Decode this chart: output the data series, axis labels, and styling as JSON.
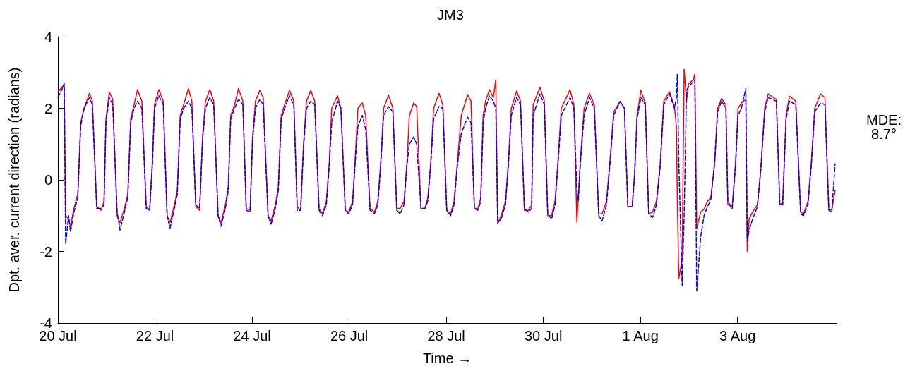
{
  "chart_data": {
    "type": "line",
    "title": "JM3",
    "xlabel": "Time →",
    "ylabel": "Dpt. aver. current direction (radians)",
    "annotations": [
      "MDE:\n8.7°"
    ],
    "x": [
      "--07-20T00:00",
      "--07-20T02:10",
      "--07-20T03:07",
      "--07-20T03:50",
      "--07-20T05:17",
      "--07-20T06:14",
      "--07-20T07:55",
      "--07-20T09:50",
      "--07-20T11:17",
      "--07-20T12:58",
      "--07-20T15:36",
      "--07-20T17:02",
      "--07-20T19:12",
      "--07-20T21:22",
      "--07-20T22:48",
      "--07-20T23:46",
      "--07-21T01:26",
      "--07-21T03:07",
      "--07-21T05:17",
      "--07-21T06:43",
      "--07-21T08:53",
      "--07-21T10:34",
      "--07-21T12:00",
      "--07-21T13:41",
      "--07-21T15:22",
      "--07-21T17:31",
      "--07-21T19:41",
      "--07-21T21:22",
      "--07-21T22:48",
      "--07-21T23:46",
      "--07-22T01:55",
      "--07-22T04:05",
      "--07-22T06:00",
      "--07-22T07:26",
      "--07-22T09:36",
      "--07-22T11:02",
      "--07-22T12:29",
      "--07-22T14:10",
      "--07-22T16:34",
      "--07-22T18:14",
      "--07-22T20:10",
      "--07-22T22:05",
      "--07-22T23:31",
      "--07-23T00:58",
      "--07-23T03:07",
      "--07-23T05:02",
      "--07-23T07:12",
      "--07-23T08:38",
      "--07-23T10:48",
      "--07-23T12:14",
      "--07-23T13:26",
      "--07-23T15:22",
      "--07-23T17:17",
      "--07-23T19:26",
      "--07-23T21:07",
      "--07-23T23:02",
      "--07-24T00:14",
      "--07-24T01:41",
      "--07-24T03:50",
      "--07-24T05:31",
      "--07-24T07:55",
      "--07-24T09:22",
      "--07-24T11:31",
      "--07-24T12:58",
      "--07-24T14:24",
      "--07-24T16:05",
      "--07-24T18:29",
      "--07-24T20:38",
      "--07-24T22:19",
      "--07-25T00:00",
      "--07-25T01:26",
      "--07-25T02:53",
      "--07-25T05:02",
      "--07-25T06:58",
      "--07-25T09:07",
      "--07-25T10:48",
      "--07-25T12:43",
      "--07-25T14:10",
      "--07-25T15:22",
      "--07-25T18:14",
      "--07-25T19:55",
      "--07-25T22:05",
      "--07-25T23:46",
      "--07-26T01:41",
      "--07-26T02:53",
      "--07-26T04:19",
      "--07-26T06:29",
      "--07-26T08:10",
      "--07-26T10:19",
      "--07-26T12:29",
      "--07-26T14:10",
      "--07-26T15:36",
      "--07-26T17:02",
      "--07-26T19:26",
      "--07-26T21:36",
      "--07-26T23:31",
      "--07-27T01:12",
      "--07-27T03:07",
      "--07-27T04:34",
      "--07-27T05:46",
      "--07-27T07:55",
      "--07-27T09:22",
      "--07-27T11:31",
      "--07-27T13:26",
      "--07-27T14:53",
      "--07-27T16:19",
      "--07-27T17:46",
      "--07-27T20:24",
      "--07-27T22:19",
      "--07-28T00:14",
      "--07-28T02:10",
      "--07-28T03:50",
      "--07-28T05:31",
      "--07-28T07:26",
      "--07-28T10:34",
      "--07-28T12:14",
      "--07-28T13:55",
      "--07-28T15:36",
      "--07-28T17:02",
      "--07-28T18:14",
      "--07-28T19:26",
      "--07-28T21:22",
      "--07-28T23:17",
      "--07-29T00:29",
      "--07-29T01:26",
      "--07-29T03:07",
      "--07-29T05:17",
      "--07-29T06:43",
      "--07-29T08:10",
      "--07-29T10:48",
      "--07-29T12:43",
      "--07-29T14:38",
      "--07-29T16:34",
      "--07-29T18:14",
      "--07-29T18:58",
      "--07-29T22:19",
      "--07-30T00:29",
      "--07-30T02:10",
      "--07-30T04:05",
      "--07-30T05:46",
      "--07-30T07:12",
      "--07-30T08:53",
      "--07-30T13:12",
      "--07-30T15:07",
      "--07-30T16:34",
      "--07-30T17:17",
      "--07-30T18:14",
      "--07-30T20:10",
      "--07-30T22:48",
      "--07-31T01:12",
      "--07-31T03:22",
      "--07-31T05:02",
      "--07-31T07:12",
      "--07-31T08:53",
      "--07-31T10:48",
      "--07-31T13:55",
      "--07-31T16:05",
      "--07-31T17:46",
      "--07-31T19:55",
      "--07-31T21:07",
      "--07-31T22:19",
      "--08-01T00:14",
      "--08-01T02:24",
      "--08-01T04:05",
      "--08-01T06:00",
      "--08-01T07:55",
      "--08-01T09:50",
      "--08-01T11:31",
      "--08-01T14:24",
      "--08-01T16:48",
      "--08-01T17:46",
      "--08-01T18:14",
      "--08-01T18:58",
      "--08-01T20:38",
      "--08-01T21:36",
      "--08-01T22:48",
      "--08-01T23:46",
      "--08-02T02:10",
      "--08-02T02:53",
      "--08-02T03:50",
      "--08-02T05:46",
      "--08-02T07:26",
      "--08-02T09:07",
      "--08-02T10:48",
      "--08-02T12:43",
      "--08-02T14:10",
      "--08-02T16:05",
      "--08-02T18:14",
      "--08-02T19:12",
      "--08-02T21:22",
      "--08-02T23:02",
      "--08-03T00:14",
      "--08-03T01:55",
      "--08-03T04:05",
      "--08-03T04:48",
      "--08-03T05:46",
      "--08-03T07:26",
      "--08-03T09:50",
      "--08-03T11:31",
      "--08-03T13:26",
      "--08-03T15:07",
      "--08-03T19:12",
      "--08-03T20:53",
      "--08-03T22:19",
      "--08-04T00:00",
      "--08-04T01:41",
      "--08-04T04:48",
      "--08-04T07:12",
      "--08-04T08:38",
      "--08-04T10:48",
      "--08-04T12:29",
      "--08-04T14:10",
      "--08-04T17:02",
      "--08-04T19:12",
      "--08-04T21:07",
      "--08-04T22:34",
      "--08-05T00:14"
    ],
    "series": [
      {
        "color": "#ff0000",
        "line_style": "solid",
        "values": [
          2.45,
          2.6,
          2.65,
          -1.0,
          -1.1,
          -1.3,
          -0.8,
          -0.4,
          1.6,
          2.0,
          2.42,
          2.2,
          -0.75,
          -0.85,
          -0.6,
          1.7,
          2.45,
          2.25,
          -1.0,
          -1.2,
          -0.8,
          -0.4,
          1.7,
          2.1,
          2.52,
          2.2,
          -0.75,
          -0.85,
          0.6,
          2.1,
          2.52,
          2.2,
          -1.0,
          -1.2,
          -0.7,
          -0.3,
          1.8,
          2.1,
          2.55,
          2.2,
          -0.75,
          -0.85,
          1.2,
          2.2,
          2.52,
          2.2,
          -1.0,
          -1.2,
          -0.7,
          -0.2,
          1.8,
          2.1,
          2.55,
          2.2,
          -0.8,
          -0.85,
          1.2,
          2.2,
          2.5,
          2.3,
          -1.0,
          -1.15,
          -0.7,
          -0.2,
          1.8,
          2.1,
          2.5,
          2.2,
          -0.75,
          -0.85,
          1.0,
          2.2,
          2.5,
          2.2,
          -0.8,
          -0.95,
          -0.6,
          0.5,
          2.0,
          2.35,
          2.0,
          -0.85,
          -0.9,
          -0.6,
          0.5,
          2.0,
          2.15,
          1.8,
          -0.8,
          -0.9,
          -0.6,
          0.5,
          2.0,
          2.37,
          2.0,
          -0.8,
          -0.8,
          -0.6,
          0.5,
          1.8,
          2.15,
          2.05,
          -0.8,
          -0.8,
          -0.5,
          0.5,
          2.0,
          2.42,
          2.1,
          -0.85,
          -0.95,
          -0.6,
          0.5,
          1.8,
          2.38,
          2.2,
          -0.8,
          -0.8,
          -0.5,
          1.8,
          2.2,
          2.52,
          2.3,
          2.8,
          -1.22,
          -1.0,
          -0.6,
          0.5,
          2.0,
          2.48,
          2.2,
          -0.85,
          -0.85,
          -0.7,
          2.1,
          2.58,
          2.2,
          -1.0,
          -1.0,
          -0.6,
          0.5,
          2.0,
          2.52,
          2.1,
          -1.18,
          -0.5,
          0.5,
          2.0,
          2.42,
          2.1,
          -0.95,
          -0.95,
          -0.6,
          0.5,
          1.9,
          2.19,
          2.0,
          -0.75,
          -0.75,
          0.2,
          1.8,
          2.5,
          2.15,
          -0.95,
          -0.9,
          -0.6,
          0.5,
          2.2,
          2.46,
          2.05,
          1.5,
          -0.5,
          -2.76,
          -2.2,
          3.09,
          2.2,
          2.68,
          2.8,
          2.95,
          -1.35,
          -0.9,
          -0.82,
          -0.6,
          -0.5,
          0.5,
          2.0,
          2.27,
          2.1,
          -0.69,
          -0.75,
          0.5,
          2.0,
          2.15,
          2.25,
          -2.0,
          -1.08,
          -0.9,
          -0.69,
          0.3,
          2.0,
          2.4,
          2.25,
          -0.69,
          -0.65,
          1.8,
          2.34,
          2.2,
          -0.9,
          -0.95,
          -0.6,
          0.5,
          2.0,
          2.4,
          2.3,
          -0.83,
          -0.85,
          -0.3
        ]
      },
      {
        "color": "#0000ff",
        "line_style": "dashed",
        "values": [
          2.3,
          2.55,
          2.7,
          -1.8,
          -1.0,
          -1.45,
          -0.9,
          -0.5,
          1.5,
          2.0,
          2.3,
          2.1,
          -0.8,
          -0.8,
          -0.7,
          1.6,
          2.3,
          2.1,
          -0.9,
          -1.4,
          -0.9,
          -0.5,
          1.6,
          2.0,
          2.2,
          2.0,
          -0.8,
          -0.85,
          0.5,
          2.0,
          2.35,
          2.1,
          -1.0,
          -1.35,
          -0.8,
          -0.4,
          1.7,
          2.0,
          2.2,
          2.0,
          -0.7,
          -0.8,
          1.1,
          2.0,
          2.3,
          2.1,
          -1.0,
          -1.3,
          -0.8,
          -0.3,
          1.7,
          2.0,
          2.25,
          2.1,
          -0.85,
          -0.9,
          1.1,
          2.0,
          2.25,
          2.1,
          -1.0,
          -1.25,
          -0.8,
          -0.3,
          1.7,
          2.0,
          2.35,
          2.1,
          -0.85,
          -0.85,
          0.9,
          2.0,
          2.2,
          2.1,
          -0.85,
          -1.0,
          -0.7,
          0.4,
          1.6,
          2.2,
          2.0,
          -0.85,
          -0.95,
          -0.7,
          0.4,
          1.5,
          1.8,
          1.4,
          -0.85,
          -0.95,
          -0.7,
          0.4,
          1.8,
          2.05,
          1.9,
          -0.85,
          -0.95,
          -0.7,
          0.4,
          1.0,
          1.2,
          1.0,
          -0.8,
          -0.8,
          -0.6,
          0.4,
          1.7,
          2.05,
          2.0,
          -0.85,
          -1.0,
          -0.7,
          0.4,
          1.3,
          1.75,
          1.6,
          -0.8,
          -0.85,
          -0.6,
          1.6,
          2.0,
          2.35,
          2.2,
          2.0,
          -1.2,
          -1.1,
          -0.7,
          0.4,
          1.8,
          2.3,
          2.1,
          -0.8,
          -0.9,
          -0.8,
          1.8,
          2.4,
          2.1,
          -0.95,
          -1.1,
          -0.7,
          0.4,
          1.8,
          2.3,
          2.0,
          -0.3,
          -0.6,
          0.4,
          1.8,
          2.3,
          2.0,
          -1.0,
          -1.15,
          -0.7,
          0.4,
          1.8,
          2.19,
          2.0,
          -0.75,
          -0.75,
          0.1,
          1.7,
          2.3,
          2.1,
          -0.95,
          -1.05,
          -0.7,
          0.4,
          2.1,
          2.4,
          2.0,
          2.3,
          2.95,
          0.5,
          -2.95,
          -1.0,
          2.5,
          2.6,
          2.75,
          2.8,
          -3.1,
          -1.6,
          -1.0,
          -0.75,
          -0.55,
          0.5,
          1.9,
          2.2,
          2.0,
          -0.6,
          -0.8,
          0.4,
          1.8,
          2.0,
          2.55,
          -1.7,
          -1.4,
          -1.1,
          -0.75,
          0.3,
          1.9,
          2.3,
          2.2,
          -0.69,
          -0.7,
          1.7,
          2.2,
          2.1,
          -0.95,
          -1.0,
          -0.7,
          0.4,
          1.9,
          2.15,
          2.1,
          -0.85,
          -0.9,
          0.45
        ]
      }
    ],
    "xlim": [
      "--07-20T00:00",
      "--08-05T00:58"
    ],
    "xticks": [
      {
        "value": "--07-20",
        "label": "20 Jul"
      },
      {
        "value": "--07-22",
        "label": "22 Jul"
      },
      {
        "value": "--07-24",
        "label": "24 Jul"
      },
      {
        "value": "--07-26",
        "label": "26 Jul"
      },
      {
        "value": "--07-28",
        "label": "28 Jul"
      },
      {
        "value": "--07-30",
        "label": "30 Jul"
      },
      {
        "value": "--08-01",
        "label": "1 Aug"
      },
      {
        "value": "--08-03",
        "label": "3 Aug"
      }
    ],
    "ylim": [
      -4,
      4
    ],
    "yticks": [
      -4,
      -2,
      0,
      2,
      4
    ],
    "grid": false,
    "marker": "none"
  }
}
